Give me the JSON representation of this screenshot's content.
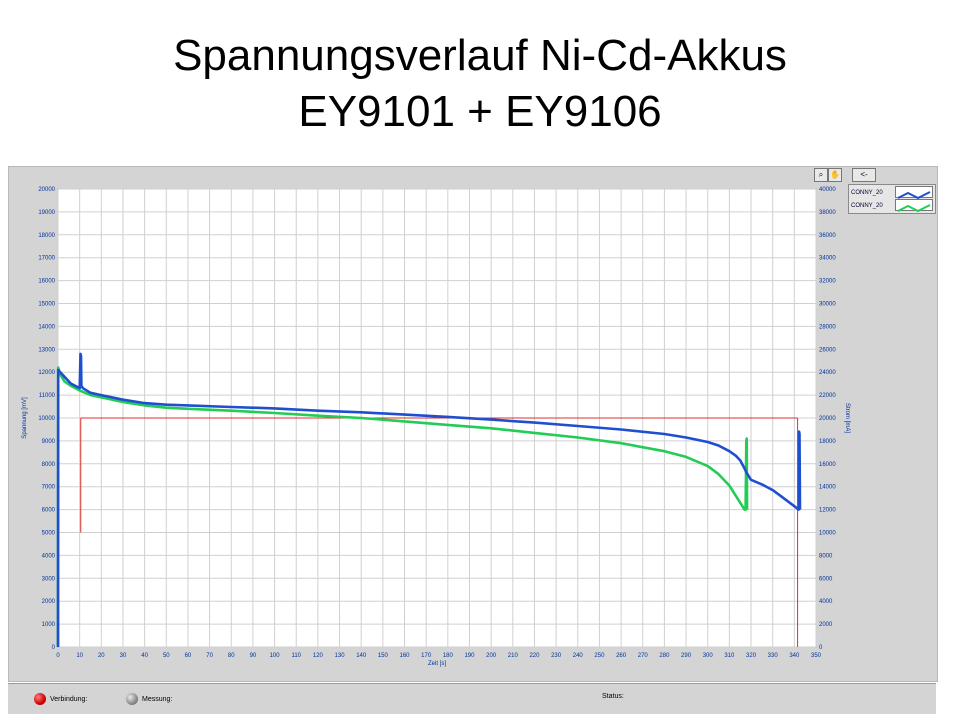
{
  "slide": {
    "title_line1": "Spannungsverlauf Ni-Cd-Akkus",
    "title_line2": "EY9101 + EY9106"
  },
  "toolbar": {
    "back_label": "<-"
  },
  "status": {
    "connection_label": "Verbindung:",
    "measurement_label": "Messung:",
    "status_label": "Status:",
    "connection_led_color": "#d00000",
    "measurement_led_color": "#8a8a8a"
  },
  "chart_data": {
    "type": "line",
    "xlabel": "Zeit [s]",
    "ylabel": "Spannung [mV]",
    "y2label": "Strom [mA]",
    "xlim": [
      0,
      350
    ],
    "ylim": [
      0,
      20000
    ],
    "y2lim": [
      0,
      40000
    ],
    "xticks": [
      0,
      10,
      20,
      30,
      40,
      50,
      60,
      70,
      80,
      90,
      100,
      110,
      120,
      130,
      140,
      150,
      160,
      170,
      180,
      190,
      200,
      210,
      220,
      230,
      240,
      250,
      260,
      270,
      280,
      290,
      300,
      310,
      320,
      330,
      340,
      350
    ],
    "yticks": [
      0,
      1000,
      2000,
      3000,
      4000,
      5000,
      6000,
      7000,
      8000,
      9000,
      10000,
      11000,
      12000,
      13000,
      14000,
      15000,
      16000,
      17000,
      18000,
      19000,
      20000
    ],
    "y2ticks": [
      0,
      2000,
      4000,
      6000,
      8000,
      10000,
      12000,
      14000,
      16000,
      18000,
      20000,
      22000,
      24000,
      26000,
      28000,
      30000,
      32000,
      34000,
      36000,
      38000,
      40000
    ],
    "grid": true,
    "legend_position": "top-right",
    "series": [
      {
        "name": "CONNY_20",
        "color": "#1f4fcf",
        "x": [
          0,
          0.1,
          1,
          3,
          6,
          10,
          10.4,
          10.6,
          10.8,
          11.5,
          15,
          20,
          30,
          40,
          50,
          60,
          80,
          100,
          120,
          140,
          160,
          180,
          200,
          220,
          240,
          260,
          280,
          290,
          300,
          305,
          310,
          313,
          315,
          317,
          318,
          319,
          320,
          325,
          330,
          335,
          340,
          342,
          342.2,
          342.4,
          342.6
        ],
        "y": [
          0,
          12100,
          12000,
          11800,
          11500,
          11300,
          12800,
          12700,
          11400,
          11300,
          11100,
          11000,
          10800,
          10650,
          10580,
          10550,
          10480,
          10420,
          10320,
          10250,
          10150,
          10050,
          9930,
          9800,
          9650,
          9500,
          9300,
          9150,
          8950,
          8800,
          8550,
          8350,
          8150,
          7800,
          7600,
          7450,
          7300,
          7100,
          6850,
          6500,
          6150,
          6000,
          9400,
          9300,
          6000
        ]
      },
      {
        "name": "CONNY_20",
        "color": "#22cc55",
        "x": [
          0,
          0.1,
          1,
          3,
          6,
          10,
          15,
          20,
          30,
          40,
          50,
          60,
          80,
          100,
          120,
          140,
          160,
          180,
          200,
          220,
          240,
          260,
          280,
          290,
          300,
          305,
          310,
          313,
          315,
          317,
          317.5,
          317.8,
          318,
          318.2
        ],
        "y": [
          0,
          12200,
          11900,
          11600,
          11400,
          11200,
          11000,
          10900,
          10700,
          10550,
          10450,
          10400,
          10320,
          10220,
          10100,
          10000,
          9850,
          9700,
          9550,
          9350,
          9150,
          8900,
          8550,
          8300,
          7900,
          7550,
          7050,
          6600,
          6300,
          6000,
          6000,
          9000,
          9100,
          6000
        ]
      }
    ],
    "threshold_color": "#e03030",
    "threshold_lines": [
      {
        "type": "horizontal",
        "y": 10000,
        "x_from": 10.5,
        "x_to": 341.5
      },
      {
        "type": "vertical",
        "x": 10.5,
        "y_from": 5000,
        "y_to": 10000
      },
      {
        "type": "vertical",
        "x": 341.5,
        "y_from": 0,
        "y_to": 10000
      }
    ]
  }
}
